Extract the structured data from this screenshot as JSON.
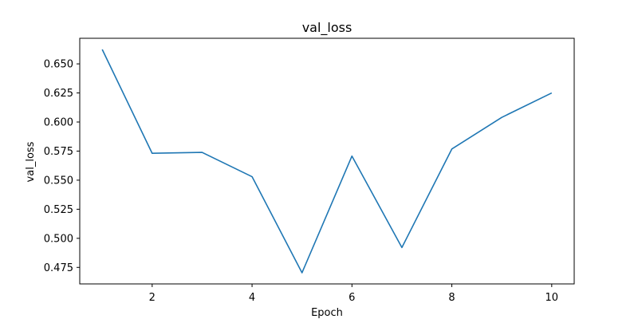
{
  "chart_data": {
    "type": "line",
    "title": "val_loss",
    "xlabel": "Epoch",
    "ylabel": "val_loss",
    "x": [
      1,
      2,
      3,
      4,
      5,
      6,
      7,
      8,
      9,
      10
    ],
    "series": [
      {
        "values": [
          0.6624,
          0.5731,
          0.5739,
          0.553,
          0.4704,
          0.5707,
          0.4921,
          0.5768,
          0.604,
          0.625
        ]
      }
    ],
    "xlim": [
      0.55,
      10.45
    ],
    "ylim": [
      0.4608,
      0.672
    ],
    "x_ticks": [
      2,
      4,
      6,
      8,
      10
    ],
    "y_ticks": [
      0.475,
      0.5,
      0.525,
      0.55,
      0.575,
      0.6,
      0.625,
      0.65
    ],
    "y_tick_labels": [
      "0.475",
      "0.500",
      "0.525",
      "0.550",
      "0.575",
      "0.600",
      "0.625",
      "0.650"
    ],
    "x_tick_labels": [
      "2",
      "4",
      "6",
      "8",
      "10"
    ],
    "grid": false,
    "line_color": "#1f77b4"
  }
}
